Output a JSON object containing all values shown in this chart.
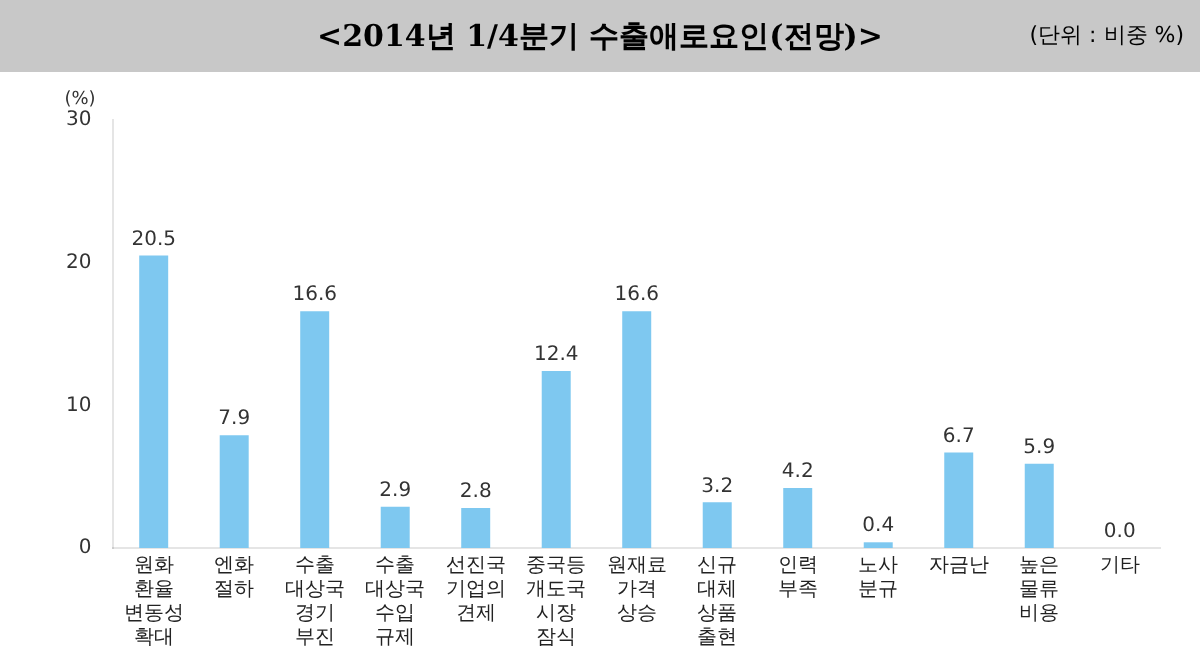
{
  "chart_data": {
    "type": "bar",
    "title": "<2014년 1/4분기 수출애로요인(전망)>",
    "annotations": [
      "(단위 : 비중 %)"
    ],
    "ylabel": "(%)",
    "categories": [
      "원화 환율 변동성 확대",
      "엔화 절하",
      "수출 대상국 경기 부진",
      "수출 대상국 수입 규제",
      "선진국 기업의 견제",
      "중국등 개도국 시장 잠식",
      "원재료 가격 상승",
      "신규 대체 상품 출현",
      "인력 부족",
      "노사 분규",
      "자금난",
      "높은 물류 비용",
      "기타"
    ],
    "values": [
      20.5,
      7.9,
      16.6,
      2.9,
      2.8,
      12.4,
      16.6,
      3.2,
      4.2,
      0.4,
      6.7,
      5.9,
      0.0
    ],
    "value_labels": [
      "20.5",
      "7.9",
      "16.6",
      "2.9",
      "2.8",
      "12.4",
      "16.6",
      "3.2",
      "4.2",
      "0.4",
      "6.7",
      "5.9",
      "0.0"
    ],
    "color": "#7ec8f0",
    "ylim": [
      0,
      30
    ],
    "yticks": [
      0,
      10,
      20,
      30
    ],
    "grid": false,
    "legend": false
  }
}
